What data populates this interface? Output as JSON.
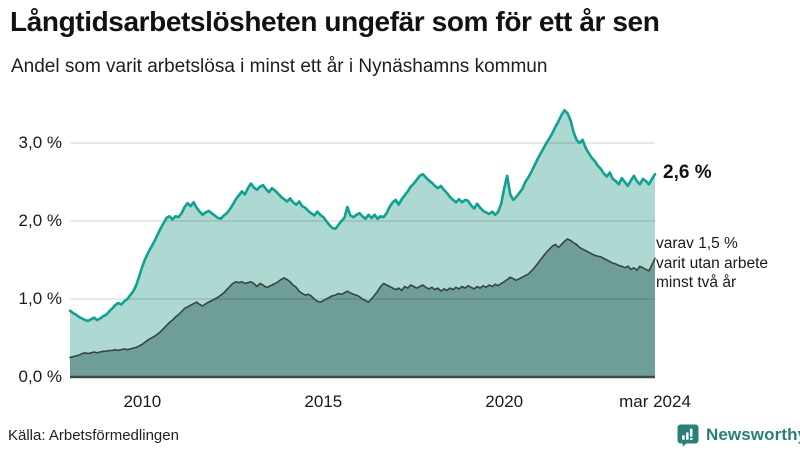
{
  "header": {
    "title": "Långtidsarbetslösheten ungefär som för ett år sen",
    "subtitle": "Andel som varit arbetslösa i minst ett år i Nynäshamns kommun"
  },
  "annotations": {
    "total_end_label": "2,6 %",
    "subset_lines": [
      "varav 1,5 %",
      "varit utan arbete",
      "minst två år"
    ]
  },
  "footer": {
    "source": "Källa: Arbetsförmedlingen",
    "brand": "Newsworthy"
  },
  "colors": {
    "total_line": "#0fa192",
    "total_fill": "#aed8d2",
    "subset_line": "#36453f",
    "subset_fill": "#6f9e98",
    "baseline": "#3a4a45",
    "gridline": "rgba(0,0,0,0.14)",
    "brand_teal": "#2a8077",
    "text": "#1a1a1a"
  },
  "chart_data": {
    "type": "area",
    "title": "Långtidsarbetslösheten ungefär som för ett år sen",
    "subtitle": "Andel som varit arbetslösa i minst ett år i Nynäshamns kommun",
    "unit": "%",
    "x_start": "2008-01",
    "x_end": "2024-03",
    "interval": "monthly",
    "ylim": [
      0,
      3.5
    ],
    "grid": "horizontal",
    "legend_position": "right-annotations",
    "y_ticks": [
      {
        "label": "0,0 %",
        "value": 0
      },
      {
        "label": "1,0 %",
        "value": 1
      },
      {
        "label": "2,0 %",
        "value": 2
      },
      {
        "label": "3,0 %",
        "value": 3
      }
    ],
    "x_ticks": [
      {
        "label": "2010",
        "month_index": 24
      },
      {
        "label": "2015",
        "month_index": 84
      },
      {
        "label": "2020",
        "month_index": 144
      },
      {
        "label": "mar 2024",
        "month_index": 194
      }
    ],
    "series": [
      {
        "name": "Andel arbetslösa minst ett år",
        "end_value": 2.6,
        "color": "#0fa192",
        "fill": "#aed8d2",
        "stroke_width": 2.6,
        "values": [
          0.85,
          0.82,
          0.8,
          0.77,
          0.75,
          0.73,
          0.72,
          0.74,
          0.76,
          0.73,
          0.75,
          0.78,
          0.8,
          0.84,
          0.88,
          0.92,
          0.95,
          0.93,
          0.97,
          1.0,
          1.05,
          1.1,
          1.18,
          1.3,
          1.42,
          1.52,
          1.6,
          1.67,
          1.74,
          1.82,
          1.9,
          1.97,
          2.04,
          2.06,
          2.02,
          2.06,
          2.05,
          2.1,
          2.18,
          2.23,
          2.19,
          2.24,
          2.17,
          2.12,
          2.08,
          2.11,
          2.13,
          2.1,
          2.07,
          2.04,
          2.03,
          2.07,
          2.1,
          2.15,
          2.21,
          2.28,
          2.33,
          2.38,
          2.34,
          2.42,
          2.48,
          2.43,
          2.4,
          2.44,
          2.46,
          2.41,
          2.37,
          2.42,
          2.39,
          2.35,
          2.31,
          2.28,
          2.25,
          2.29,
          2.24,
          2.21,
          2.25,
          2.19,
          2.17,
          2.13,
          2.1,
          2.07,
          2.12,
          2.08,
          2.05,
          2.0,
          1.95,
          1.91,
          1.9,
          1.95,
          2.0,
          2.04,
          2.18,
          2.07,
          2.05,
          2.08,
          2.1,
          2.06,
          2.03,
          2.08,
          2.04,
          2.08,
          2.03,
          2.06,
          2.05,
          2.1,
          2.18,
          2.24,
          2.27,
          2.21,
          2.28,
          2.33,
          2.38,
          2.44,
          2.48,
          2.53,
          2.58,
          2.6,
          2.56,
          2.52,
          2.49,
          2.45,
          2.42,
          2.45,
          2.4,
          2.36,
          2.31,
          2.27,
          2.24,
          2.28,
          2.24,
          2.27,
          2.26,
          2.2,
          2.16,
          2.22,
          2.17,
          2.13,
          2.11,
          2.09,
          2.12,
          2.08,
          2.12,
          2.22,
          2.42,
          2.58,
          2.34,
          2.27,
          2.31,
          2.36,
          2.41,
          2.5,
          2.56,
          2.63,
          2.71,
          2.79,
          2.86,
          2.93,
          3.0,
          3.06,
          3.13,
          3.21,
          3.28,
          3.36,
          3.42,
          3.38,
          3.29,
          3.14,
          3.04,
          3.0,
          3.04,
          2.94,
          2.87,
          2.81,
          2.77,
          2.71,
          2.67,
          2.61,
          2.57,
          2.62,
          2.54,
          2.51,
          2.47,
          2.55,
          2.5,
          2.45,
          2.52,
          2.58,
          2.51,
          2.47,
          2.54,
          2.51,
          2.47,
          2.54,
          2.6
        ]
      },
      {
        "name": "Andel arbetslösa minst två år",
        "end_value": 1.5,
        "color": "#36453f",
        "fill": "#6f9e98",
        "stroke_width": 1.6,
        "values": [
          0.25,
          0.26,
          0.27,
          0.28,
          0.3,
          0.31,
          0.3,
          0.31,
          0.32,
          0.31,
          0.32,
          0.33,
          0.33,
          0.34,
          0.34,
          0.35,
          0.34,
          0.35,
          0.36,
          0.35,
          0.36,
          0.37,
          0.38,
          0.4,
          0.42,
          0.45,
          0.48,
          0.5,
          0.52,
          0.55,
          0.58,
          0.62,
          0.66,
          0.7,
          0.73,
          0.77,
          0.8,
          0.84,
          0.88,
          0.9,
          0.92,
          0.94,
          0.96,
          0.93,
          0.91,
          0.94,
          0.96,
          0.98,
          1.0,
          1.02,
          1.05,
          1.08,
          1.12,
          1.16,
          1.2,
          1.22,
          1.21,
          1.22,
          1.2,
          1.21,
          1.22,
          1.2,
          1.16,
          1.2,
          1.18,
          1.15,
          1.16,
          1.18,
          1.2,
          1.22,
          1.25,
          1.27,
          1.25,
          1.22,
          1.18,
          1.15,
          1.1,
          1.07,
          1.05,
          1.06,
          1.04,
          1.0,
          0.97,
          0.96,
          0.98,
          1.0,
          1.02,
          1.04,
          1.05,
          1.07,
          1.06,
          1.08,
          1.1,
          1.08,
          1.06,
          1.05,
          1.03,
          1.0,
          0.98,
          0.96,
          1.0,
          1.05,
          1.1,
          1.16,
          1.2,
          1.18,
          1.16,
          1.14,
          1.12,
          1.14,
          1.11,
          1.16,
          1.14,
          1.18,
          1.16,
          1.14,
          1.16,
          1.18,
          1.15,
          1.13,
          1.15,
          1.12,
          1.14,
          1.1,
          1.13,
          1.11,
          1.14,
          1.12,
          1.15,
          1.13,
          1.16,
          1.14,
          1.17,
          1.15,
          1.13,
          1.16,
          1.14,
          1.17,
          1.15,
          1.18,
          1.16,
          1.19,
          1.17,
          1.2,
          1.22,
          1.25,
          1.28,
          1.26,
          1.24,
          1.26,
          1.28,
          1.3,
          1.32,
          1.36,
          1.4,
          1.45,
          1.5,
          1.55,
          1.6,
          1.64,
          1.68,
          1.7,
          1.66,
          1.7,
          1.74,
          1.77,
          1.75,
          1.72,
          1.7,
          1.66,
          1.64,
          1.62,
          1.6,
          1.58,
          1.56,
          1.55,
          1.54,
          1.52,
          1.5,
          1.48,
          1.46,
          1.45,
          1.43,
          1.42,
          1.4,
          1.42,
          1.38,
          1.4,
          1.37,
          1.42,
          1.4,
          1.38,
          1.36,
          1.44,
          1.52
        ]
      }
    ]
  }
}
